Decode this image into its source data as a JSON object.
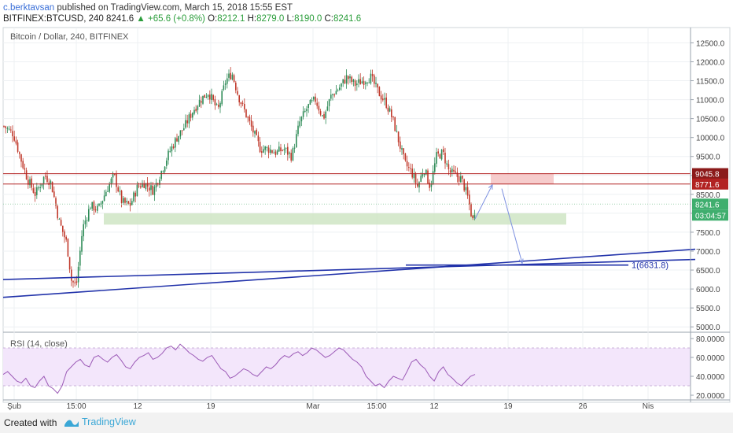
{
  "header": {
    "author": "c.berktavsan",
    "published_text": "published on TradingView.com, March 15, 2018 15:55 EST",
    "symbol": "BITFINEX:BTCUSD, 240",
    "last": "8241.6",
    "change": "+65.6 (+0.8%)",
    "o_label": "O:",
    "open": "8212.1",
    "h_label": "H:",
    "high": "8279.0",
    "l_label": "L:",
    "low": "8190.0",
    "c_label": "C:",
    "close": "8241.6"
  },
  "chart_title": "Bitcoin / Dollar, 240, BITFINEX",
  "rsi_title": "RSI (14, close)",
  "fib_label": "1(6631.8)",
  "price_tags": {
    "resist_top": "9045.8",
    "resist_bottom": "8771.6",
    "last": "8241.6",
    "countdown": "03:04:57"
  },
  "footer": {
    "created_with": "Created with",
    "brand": "TradingView"
  },
  "colors": {
    "bull": "#2e8b57",
    "bear": "#c0392b",
    "trendline": "#2233aa",
    "resistance": "#b22222",
    "rsi_line": "#9b59b6",
    "rsi_band": "#f3e6fb",
    "support_zone": "#cfe5c4",
    "resistance_zone": "#f5c3c3"
  },
  "chart_data": [
    {
      "type": "candlestick",
      "title": "Bitcoin / Dollar, 240, BITFINEX",
      "x_ticks": [
        "Şub",
        "15:00",
        "12",
        "19",
        "Mar",
        "15:00",
        "12",
        "19",
        "26",
        "Nis"
      ],
      "y_ticks": [
        "5000.0",
        "5500.0",
        "6000.0",
        "6500.0",
        "7000.0",
        "7500.0",
        "8000.0",
        "8500.0",
        "9000.0",
        "9500.0",
        "10000.0",
        "10500.0",
        "11000.0",
        "11500.0",
        "12000.0",
        "12500.0"
      ],
      "ylim": [
        4900,
        12800
      ],
      "close_path": [
        [
          0,
          10300
        ],
        [
          12,
          10100
        ],
        [
          22,
          9400
        ],
        [
          30,
          8900
        ],
        [
          40,
          8500
        ],
        [
          52,
          9000
        ],
        [
          60,
          8800
        ],
        [
          70,
          7800
        ],
        [
          80,
          7200
        ],
        [
          86,
          6200
        ],
        [
          92,
          6100
        ],
        [
          100,
          7600
        ],
        [
          110,
          8200
        ],
        [
          120,
          8100
        ],
        [
          130,
          8600
        ],
        [
          140,
          9000
        ],
        [
          150,
          8300
        ],
        [
          160,
          8200
        ],
        [
          170,
          8700
        ],
        [
          178,
          8800
        ],
        [
          190,
          8600
        ],
        [
          200,
          9100
        ],
        [
          210,
          9600
        ],
        [
          220,
          10000
        ],
        [
          230,
          10300
        ],
        [
          240,
          10700
        ],
        [
          250,
          11000
        ],
        [
          260,
          11200
        ],
        [
          272,
          10700
        ],
        [
          282,
          11500
        ],
        [
          290,
          11700
        ],
        [
          298,
          11100
        ],
        [
          306,
          10700
        ],
        [
          316,
          10200
        ],
        [
          326,
          9700
        ],
        [
          336,
          9700
        ],
        [
          346,
          9600
        ],
        [
          356,
          9700
        ],
        [
          366,
          9500
        ],
        [
          376,
          10400
        ],
        [
          386,
          10800
        ],
        [
          396,
          11000
        ],
        [
          406,
          10500
        ],
        [
          416,
          11100
        ],
        [
          426,
          11300
        ],
        [
          436,
          11600
        ],
        [
          446,
          11400
        ],
        [
          456,
          11500
        ],
        [
          466,
          11600
        ],
        [
          476,
          11200
        ],
        [
          486,
          10900
        ],
        [
          494,
          10500
        ],
        [
          502,
          9900
        ],
        [
          510,
          9300
        ],
        [
          518,
          9100
        ],
        [
          526,
          8700
        ],
        [
          534,
          9200
        ],
        [
          542,
          8700
        ],
        [
          550,
          9500
        ],
        [
          558,
          9600
        ],
        [
          566,
          9100
        ],
        [
          574,
          9000
        ],
        [
          582,
          8900
        ],
        [
          590,
          8400
        ],
        [
          596,
          7800
        ],
        [
          600,
          8241.6
        ]
      ],
      "support_zone": {
        "x": [
          128,
          716
        ],
        "y": [
          7700,
          8000
        ]
      },
      "resistance_zone": {
        "x": [
          620,
          700
        ],
        "y": [
          8771.6,
          9045.8
        ]
      },
      "resistance_lines": [
        9045.8,
        8771.6
      ],
      "last_price": 8241.6,
      "trendlines": [
        {
          "from": [
            0,
            6250
          ],
          "to": [
            880,
            6780
          ]
        },
        {
          "from": [
            0,
            5780
          ],
          "to": [
            880,
            7050
          ]
        }
      ],
      "fib_level": 6631.8,
      "fib_line_x": [
        512,
        795
      ],
      "projection": [
        [
          600,
          7850
        ],
        [
          622,
          8750
        ],
        [
          634,
          8650
        ],
        [
          660,
          6680
        ]
      ]
    },
    {
      "type": "line",
      "title": "RSI (14, close)",
      "y_ticks": [
        "20.0000",
        "40.0000",
        "60.0000",
        "80.0000"
      ],
      "ylim": [
        15,
        85
      ],
      "band": [
        30,
        70
      ],
      "values": [
        42,
        45,
        40,
        35,
        33,
        38,
        30,
        28,
        35,
        40,
        30,
        27,
        22,
        30,
        45,
        50,
        55,
        58,
        52,
        50,
        60,
        62,
        58,
        55,
        60,
        63,
        57,
        50,
        48,
        55,
        60,
        62,
        65,
        58,
        60,
        64,
        70,
        72,
        68,
        74,
        70,
        65,
        62,
        58,
        56,
        60,
        62,
        55,
        48,
        45,
        38,
        40,
        44,
        48,
        46,
        42,
        40,
        45,
        50,
        48,
        52,
        58,
        62,
        60,
        64,
        66,
        62,
        65,
        70,
        68,
        64,
        60,
        62,
        66,
        70,
        68,
        63,
        58,
        55,
        50,
        40,
        35,
        30,
        32,
        28,
        35,
        40,
        38,
        36,
        45,
        55,
        58,
        52,
        48,
        40,
        35,
        45,
        50,
        42,
        38,
        33,
        30,
        35,
        40,
        42
      ]
    }
  ]
}
